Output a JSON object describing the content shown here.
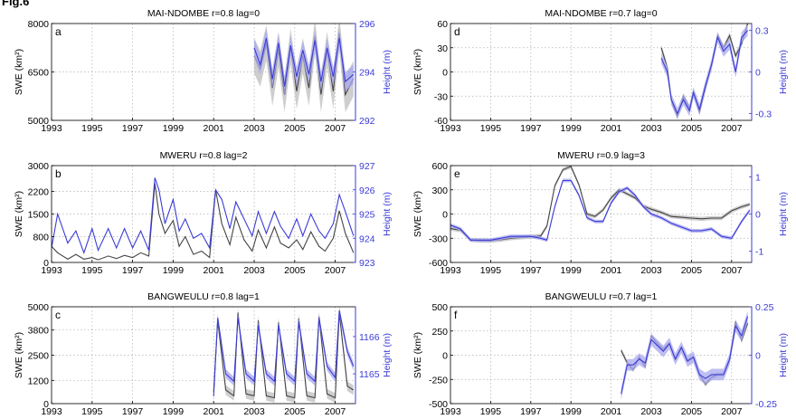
{
  "figure_label": "Fig.6",
  "colors": {
    "swe": "#444444",
    "swe_band": "#bdbdbd",
    "height": "#3b3bd6",
    "height_band": "#a8a8f0",
    "grid": "#b0b0b0"
  },
  "chart_data": [
    {
      "panel": "a",
      "type": "line",
      "title": "MAI-NDOMBE r=0.8 lag=0",
      "xlim": [
        1993,
        2008
      ],
      "xticks": [
        1993,
        1995,
        1997,
        1999,
        2001,
        2003,
        2005,
        2007
      ],
      "ylabel": "SWE (km²)",
      "ylim": [
        5000,
        8000
      ],
      "yticks": [
        5000,
        6500,
        8000
      ],
      "y2label": "Height (m)",
      "y2lim": [
        292,
        296
      ],
      "y2ticks": [
        292,
        294,
        296
      ],
      "grid": true,
      "series": [
        {
          "axis": "left",
          "band": 550,
          "x": [
            2003.0,
            2003.3,
            2003.6,
            2003.9,
            2004.2,
            2004.5,
            2004.8,
            2005.1,
            2005.4,
            2005.7,
            2006.0,
            2006.3,
            2006.6,
            2006.9,
            2007.2,
            2007.5,
            2007.9
          ],
          "y": [
            7000,
            6600,
            7400,
            6000,
            7200,
            5800,
            7300,
            5900,
            7000,
            6000,
            7600,
            5800,
            7200,
            5900,
            7700,
            5800,
            6300
          ]
        },
        {
          "axis": "right",
          "band": 0.4,
          "x": [
            2003.0,
            2003.3,
            2003.6,
            2003.9,
            2004.2,
            2004.5,
            2004.8,
            2005.1,
            2005.4,
            2005.7,
            2006.0,
            2006.3,
            2006.6,
            2006.9,
            2007.2,
            2007.5,
            2007.9
          ],
          "y": [
            295.0,
            294.3,
            295.4,
            293.7,
            295.2,
            293.4,
            295.1,
            293.8,
            294.9,
            293.9,
            295.3,
            293.6,
            295.0,
            293.8,
            295.4,
            293.6,
            293.9
          ]
        }
      ]
    },
    {
      "panel": "b",
      "type": "line",
      "title": "MWERU r=0.8 lag=2",
      "xlim": [
        1993,
        2008
      ],
      "xticks": [
        1993,
        1995,
        1997,
        1999,
        2001,
        2003,
        2005,
        2007
      ],
      "ylabel": "SWE (km²)",
      "ylim": [
        0,
        3000
      ],
      "yticks": [
        0,
        800,
        1500,
        2200,
        3000
      ],
      "y2label": "Height (m)",
      "y2lim": [
        923,
        927
      ],
      "y2ticks": [
        923,
        924,
        925,
        926,
        927
      ],
      "grid": true,
      "series": [
        {
          "axis": "left",
          "band": 0,
          "x": [
            1993.0,
            1993.3,
            1993.8,
            1994.2,
            1994.6,
            1995.0,
            1995.3,
            1995.8,
            1996.2,
            1996.6,
            1997.0,
            1997.4,
            1997.8,
            1998.1,
            1998.3,
            1998.6,
            1999.0,
            1999.3,
            1999.6,
            2000.0,
            2000.4,
            2000.8,
            2001.1,
            2001.4,
            2001.8,
            2002.1,
            2002.5,
            2002.9,
            2003.2,
            2003.6,
            2004.0,
            2004.3,
            2004.7,
            2005.1,
            2005.4,
            2005.8,
            2006.2,
            2006.5,
            2006.9,
            2007.2,
            2007.5,
            2007.9
          ],
          "y": [
            500,
            300,
            100,
            250,
            100,
            150,
            80,
            200,
            120,
            220,
            150,
            300,
            200,
            2450,
            1500,
            900,
            1300,
            500,
            800,
            250,
            350,
            150,
            2250,
            1200,
            550,
            1400,
            700,
            350,
            1000,
            450,
            1100,
            600,
            450,
            700,
            400,
            950,
            500,
            350,
            750,
            1600,
            900,
            300
          ]
        },
        {
          "axis": "right",
          "band": 0,
          "x": [
            1993.0,
            1993.3,
            1993.8,
            1994.2,
            1994.6,
            1995.0,
            1995.3,
            1995.8,
            1996.2,
            1996.6,
            1997.0,
            1997.4,
            1997.8,
            1998.1,
            1998.3,
            1998.6,
            1999.0,
            1999.3,
            1999.6,
            2000.0,
            2000.4,
            2000.8,
            2001.1,
            2001.4,
            2001.8,
            2002.1,
            2002.5,
            2002.9,
            2003.2,
            2003.6,
            2004.0,
            2004.3,
            2004.7,
            2005.1,
            2005.4,
            2005.8,
            2006.2,
            2006.5,
            2006.9,
            2007.2,
            2007.5,
            2007.9
          ],
          "y": [
            923.6,
            925.0,
            923.8,
            924.3,
            923.4,
            924.4,
            923.5,
            924.4,
            923.6,
            924.4,
            923.6,
            924.3,
            923.5,
            926.5,
            926.0,
            924.6,
            925.6,
            924.3,
            924.8,
            924.0,
            924.2,
            923.6,
            926.0,
            925.6,
            924.4,
            925.5,
            924.8,
            924.1,
            925.1,
            924.2,
            925.1,
            924.5,
            924.0,
            924.8,
            924.1,
            925.0,
            924.3,
            924.0,
            924.6,
            925.8,
            925.1,
            924.1
          ]
        }
      ]
    },
    {
      "panel": "c",
      "type": "line",
      "title": "BANGWEULU r=0.8 lag=1",
      "xlim": [
        1993,
        2008
      ],
      "xticks": [
        1993,
        1995,
        1997,
        1999,
        2001,
        2003,
        2005,
        2007
      ],
      "ylabel": "SWE (km²)",
      "ylim": [
        0,
        5000
      ],
      "yticks": [
        0,
        1200,
        2500,
        3800,
        5000
      ],
      "y2label": "Height (m)",
      "y2lim": [
        1164.2,
        1166.8
      ],
      "y2ticks": [
        1165,
        1166
      ],
      "grid": true,
      "series": [
        {
          "axis": "left",
          "band": 250,
          "x": [
            2001.0,
            2001.2,
            2001.6,
            2002.0,
            2002.2,
            2002.6,
            2003.0,
            2003.2,
            2003.6,
            2004.0,
            2004.2,
            2004.6,
            2005.0,
            2005.2,
            2005.6,
            2006.0,
            2006.2,
            2006.6,
            2007.0,
            2007.2,
            2007.6,
            2007.9
          ],
          "y": [
            600,
            4300,
            700,
            400,
            4700,
            500,
            400,
            4300,
            400,
            300,
            4200,
            400,
            300,
            4400,
            400,
            300,
            4500,
            500,
            300,
            4700,
            900,
            700
          ]
        },
        {
          "axis": "right",
          "band": 0.12,
          "x": [
            2001.0,
            2001.2,
            2001.6,
            2002.0,
            2002.2,
            2002.6,
            2003.0,
            2003.2,
            2003.6,
            2004.0,
            2004.2,
            2004.6,
            2005.0,
            2005.2,
            2005.6,
            2006.0,
            2006.2,
            2006.6,
            2007.0,
            2007.2,
            2007.6,
            2007.9
          ],
          "y": [
            1164.4,
            1166.5,
            1165.0,
            1164.8,
            1166.5,
            1165.0,
            1164.8,
            1166.3,
            1165.0,
            1164.8,
            1166.3,
            1165.0,
            1164.8,
            1166.4,
            1165.0,
            1164.8,
            1166.5,
            1165.2,
            1164.9,
            1166.7,
            1165.6,
            1165.2
          ]
        }
      ]
    },
    {
      "panel": "d",
      "type": "line",
      "title": "MAI-NDOMBE r=0.7 lag=0",
      "xlim": [
        1993,
        2008
      ],
      "xticks": [
        1993,
        1995,
        1997,
        1999,
        2001,
        2003,
        2005,
        2007
      ],
      "ylabel": "SWE (km²)",
      "ylim": [
        -60,
        60
      ],
      "yticks": [
        -60,
        -30,
        0,
        30,
        60
      ],
      "y2label": "Height (m)",
      "y2lim": [
        -0.35,
        0.35
      ],
      "y2ticks": [
        -0.3,
        0,
        0.3
      ],
      "grid": true,
      "series": [
        {
          "axis": "left",
          "band": 4,
          "x": [
            2003.5,
            2003.8,
            2004.0,
            2004.3,
            2004.6,
            2004.9,
            2005.1,
            2005.4,
            2005.7,
            2006.0,
            2006.3,
            2006.6,
            2006.9,
            2007.2,
            2007.5,
            2007.8
          ],
          "y": [
            30,
            5,
            -35,
            -55,
            -30,
            -45,
            -25,
            -50,
            -20,
            10,
            45,
            30,
            45,
            20,
            35,
            60
          ]
        },
        {
          "axis": "right",
          "band": 0.04,
          "x": [
            2003.5,
            2003.8,
            2004.0,
            2004.3,
            2004.6,
            2004.9,
            2005.1,
            2005.4,
            2005.7,
            2006.0,
            2006.3,
            2006.6,
            2006.9,
            2007.2,
            2007.5,
            2007.8
          ],
          "y": [
            0.1,
            0.0,
            -0.2,
            -0.3,
            -0.2,
            -0.28,
            -0.15,
            -0.27,
            -0.1,
            0.05,
            0.25,
            0.15,
            0.2,
            0.0,
            0.25,
            0.3
          ]
        }
      ]
    },
    {
      "panel": "e",
      "type": "line",
      "title": "MWERU r=0.9 lag=3",
      "xlim": [
        1993,
        2008
      ],
      "xticks": [
        1993,
        1995,
        1997,
        1999,
        2001,
        2003,
        2005,
        2007
      ],
      "ylabel": "SWE (km²)",
      "ylim": [
        -600,
        600
      ],
      "yticks": [
        -600,
        -300,
        0,
        300,
        600
      ],
      "y2label": "Height (m)",
      "y2lim": [
        -1.3,
        1.3
      ],
      "y2ticks": [
        -1,
        0,
        1
      ],
      "grid": true,
      "series": [
        {
          "axis": "left",
          "band": 25,
          "x": [
            1993.0,
            1993.5,
            1994.0,
            1994.5,
            1995.0,
            1995.5,
            1996.0,
            1996.5,
            1997.0,
            1997.5,
            1997.8,
            1998.2,
            1998.6,
            1999.0,
            1999.4,
            1999.8,
            2000.2,
            2000.6,
            2001.0,
            2001.4,
            2001.8,
            2002.2,
            2002.6,
            2003.0,
            2003.5,
            2004.0,
            2004.5,
            2005.0,
            2005.5,
            2006.0,
            2006.5,
            2007.0,
            2007.5,
            2007.9
          ],
          "y": [
            -180,
            -200,
            -320,
            -330,
            -330,
            -320,
            -300,
            -290,
            -280,
            -270,
            -150,
            350,
            550,
            590,
            360,
            0,
            -30,
            50,
            200,
            300,
            250,
            200,
            100,
            60,
            20,
            -30,
            -40,
            -50,
            -60,
            -50,
            -50,
            40,
            90,
            120
          ]
        },
        {
          "axis": "right",
          "band": 0.05,
          "x": [
            1993.0,
            1993.5,
            1994.0,
            1994.5,
            1995.0,
            1995.5,
            1996.0,
            1996.5,
            1997.0,
            1997.5,
            1997.8,
            1998.2,
            1998.6,
            1999.0,
            1999.4,
            1999.8,
            2000.2,
            2000.6,
            2001.0,
            2001.4,
            2001.8,
            2002.2,
            2002.6,
            2003.0,
            2003.5,
            2004.0,
            2004.5,
            2005.0,
            2005.5,
            2006.0,
            2006.5,
            2007.0,
            2007.5,
            2007.9
          ],
          "y": [
            -0.3,
            -0.4,
            -0.7,
            -0.7,
            -0.7,
            -0.65,
            -0.6,
            -0.6,
            -0.6,
            -0.65,
            -0.7,
            0.2,
            0.9,
            0.9,
            0.5,
            -0.1,
            -0.2,
            -0.2,
            0.3,
            0.6,
            0.7,
            0.5,
            0.2,
            0.0,
            -0.1,
            -0.25,
            -0.35,
            -0.45,
            -0.45,
            -0.4,
            -0.6,
            -0.65,
            -0.2,
            0.1
          ]
        }
      ]
    },
    {
      "panel": "f",
      "type": "line",
      "title": "BANGWEULU r=0.7 lag=1",
      "xlim": [
        1993,
        2008
      ],
      "xticks": [
        1993,
        1995,
        1997,
        1999,
        2001,
        2003,
        2005,
        2007
      ],
      "ylabel": "SWE (km²)",
      "ylim": [
        -500,
        500
      ],
      "yticks": [
        -500,
        -250,
        0,
        250,
        500
      ],
      "y2label": "Height (m)",
      "y2lim": [
        -0.25,
        0.25
      ],
      "y2ticks": [
        -0.25,
        0,
        0.25
      ],
      "grid": true,
      "series": [
        {
          "axis": "left",
          "band": 25,
          "x": [
            2001.5,
            2001.8,
            2002.1,
            2002.4,
            2002.7,
            2003.0,
            2003.3,
            2003.6,
            2003.9,
            2004.2,
            2004.5,
            2004.8,
            2005.1,
            2005.4,
            2005.7,
            2006.0,
            2006.3,
            2006.6,
            2006.9,
            2007.2,
            2007.5,
            2007.8
          ],
          "y": [
            50,
            -80,
            -150,
            -20,
            -120,
            200,
            120,
            60,
            120,
            -40,
            80,
            -60,
            -20,
            -200,
            -300,
            -230,
            -200,
            -200,
            -50,
            350,
            150,
            330
          ]
        },
        {
          "axis": "right",
          "band": 0.03,
          "x": [
            2001.5,
            2001.8,
            2002.1,
            2002.4,
            2002.7,
            2003.0,
            2003.3,
            2003.6,
            2003.9,
            2004.2,
            2004.5,
            2004.8,
            2005.1,
            2005.4,
            2005.7,
            2006.0,
            2006.3,
            2006.6,
            2006.9,
            2007.2,
            2007.5,
            2007.8
          ],
          "y": [
            -0.2,
            -0.05,
            -0.05,
            -0.02,
            -0.04,
            0.08,
            0.05,
            0.02,
            0.06,
            -0.02,
            0.04,
            -0.03,
            -0.01,
            -0.1,
            -0.12,
            -0.1,
            -0.1,
            -0.1,
            -0.02,
            0.15,
            0.1,
            0.2
          ]
        }
      ]
    }
  ]
}
